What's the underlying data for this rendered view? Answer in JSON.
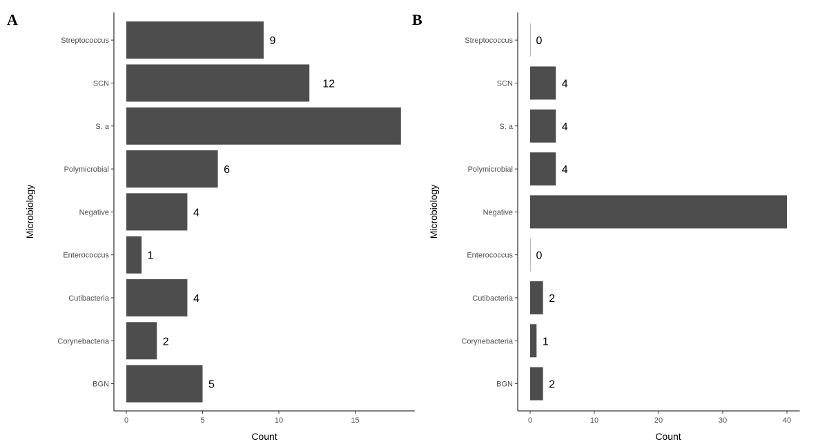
{
  "chart_data": [
    {
      "type": "bar",
      "orientation": "horizontal",
      "panel": "A",
      "categories": [
        "Streptococcus",
        "SCN",
        "S. a",
        "Polymicrobial",
        "Negative",
        "Enterococcus",
        "Cutibacteria",
        "Corynebacteria",
        "BGN"
      ],
      "values": [
        9,
        12,
        18,
        6,
        4,
        1,
        4,
        2,
        5
      ],
      "data_labels": [
        "9",
        "12",
        "",
        "6",
        "4",
        "1",
        "4",
        "2",
        "5"
      ],
      "xlabel": "Count",
      "ylabel": "Microbiology",
      "xticks": [
        0,
        5,
        10,
        15
      ],
      "xlim": [
        -0.9,
        18.9
      ]
    },
    {
      "type": "bar",
      "orientation": "horizontal",
      "panel": "B",
      "categories": [
        "Streptococcus",
        "SCN",
        "S. a",
        "Polymicrobial",
        "Negative",
        "Enterococcus",
        "Cutibacteria",
        "Corynebacteria",
        "BGN"
      ],
      "values": [
        0,
        4,
        4,
        4,
        40,
        0,
        2,
        1,
        2
      ],
      "data_labels": [
        "0",
        "4",
        "4",
        "4",
        "",
        "0",
        "2",
        "1",
        "2"
      ],
      "xlabel": "Count",
      "ylabel": "Microbiology",
      "xticks": [
        0,
        10,
        20,
        30,
        40
      ],
      "xlim": [
        -2,
        42
      ]
    }
  ]
}
